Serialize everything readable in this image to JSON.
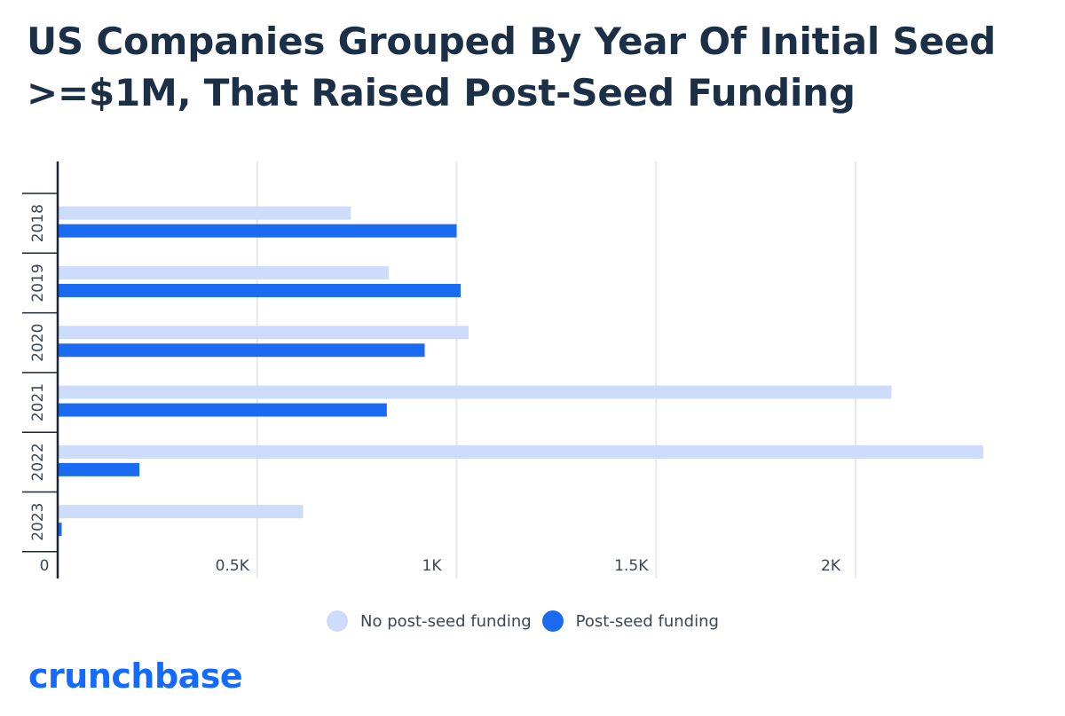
{
  "title": "US Companies Grouped By Year Of Initial Seed >=$1M, That Raised Post-Seed Funding",
  "brand": {
    "logo_text": "crunchbase",
    "logo_color": "#146aff"
  },
  "legend": [
    {
      "label": "No post-seed funding",
      "color": "#cddcfb"
    },
    {
      "label": "Post-seed funding",
      "color": "#1a6bf2"
    }
  ],
  "chart_data": {
    "type": "bar",
    "orientation": "horizontal",
    "title": "US Companies Grouped By Year Of Initial Seed >=$1M, That Raised Post-Seed Funding",
    "categories": [
      "2018",
      "2019",
      "2020",
      "2021",
      "2022",
      "2023"
    ],
    "series": [
      {
        "name": "No post-seed funding",
        "color": "#cddcfb",
        "values": [
          735,
          830,
          1030,
          2090,
          2320,
          615
        ]
      },
      {
        "name": "Post-seed funding",
        "color": "#1a6bf2",
        "values": [
          1000,
          1010,
          920,
          825,
          205,
          10
        ]
      }
    ],
    "xlim": [
      0,
      2400
    ],
    "xticks": [
      0,
      500,
      1000,
      1500,
      2000
    ],
    "xtick_labels": [
      "0",
      "0.5K",
      "1K",
      "1.5K",
      "2K"
    ],
    "xlabel": "",
    "ylabel": "",
    "grid": true,
    "legend_position": "bottom"
  }
}
